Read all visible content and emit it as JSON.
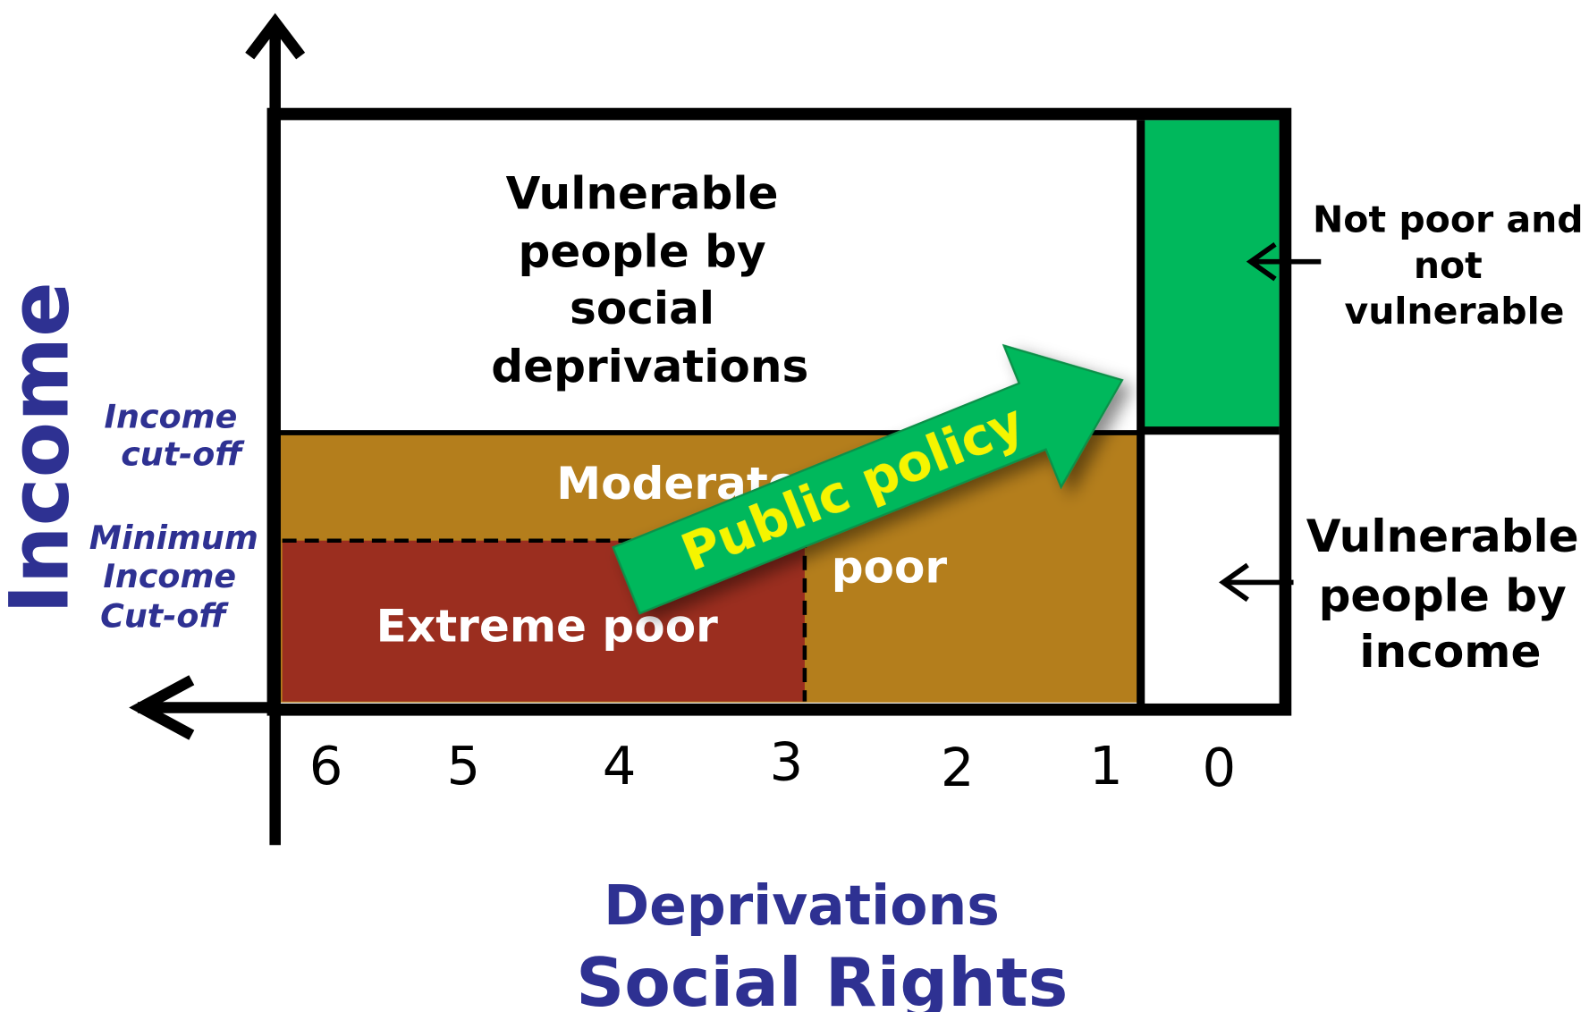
{
  "regions": {
    "vulnerable_social": [
      "Vulnerable",
      "people by",
      "social",
      "deprivations"
    ],
    "moderate_poor": [
      "Moderate",
      "poor"
    ],
    "extreme_poor": "Extreme poor"
  },
  "side_labels": {
    "not_poor": [
      "Not poor and",
      "not",
      "vulnerable"
    ],
    "vulnerable_income": [
      "Vulnerable",
      "people by",
      "income"
    ]
  },
  "income_cutoffs": {
    "income_cutoff": [
      "Income",
      "cut-off"
    ],
    "minimum_cutoff": [
      "Minimum",
      "Income",
      "Cut-off"
    ]
  },
  "y_axis_label": "Income",
  "x_ticks": [
    "6",
    "5",
    "4",
    "3",
    "2",
    "1",
    "0"
  ],
  "x_axis_label": [
    "Deprivations",
    "Social Rights"
  ],
  "arrow_label": "Public policy"
}
